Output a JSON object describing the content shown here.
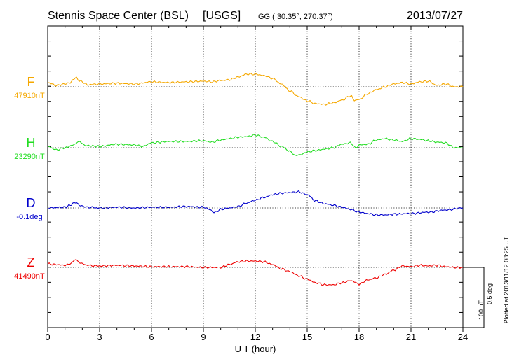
{
  "header": {
    "station": "Stennis Space Center (BSL)",
    "network": "[USGS]",
    "coords": "GG ( 30.35°, 270.37°)",
    "date": "2013/07/27"
  },
  "plotted_note": "Plotted at 2013/11/12 08:25 UT",
  "scale": {
    "nt": "100 nT",
    "deg": "0.5 deg"
  },
  "chart_data": {
    "type": "line",
    "xlabel": "U T (hour)",
    "xlim": [
      0,
      24
    ],
    "xticks": [
      "0",
      "3",
      "6",
      "9",
      "12",
      "15",
      "18",
      "21",
      "24"
    ],
    "channels": [
      {
        "name": "F",
        "baseline": "47910nT",
        "color": "#f5a800",
        "x": [
          0,
          0.5,
          1,
          1.3,
          1.6,
          1.9,
          2.3,
          3,
          4,
          5,
          6,
          7,
          8,
          9,
          9.5,
          10,
          10.5,
          11,
          11.5,
          12,
          12.5,
          13,
          13.5,
          14,
          14.5,
          15,
          15.5,
          16,
          16.5,
          17,
          17.5,
          17.8,
          18,
          18.5,
          19,
          19.5,
          20,
          20.5,
          21,
          21.5,
          22,
          22.5,
          23,
          23.5,
          24
        ],
        "y": [
          6,
          2,
          4,
          6,
          13,
          8,
          3,
          4,
          5,
          4,
          7,
          6,
          7,
          8,
          7,
          9,
          10,
          14,
          18,
          18,
          16,
          12,
          4,
          -6,
          -14,
          -20,
          -24,
          -25,
          -23,
          -19,
          -13,
          -20,
          -18,
          -10,
          -4,
          0,
          4,
          6,
          4,
          7,
          8,
          2,
          4,
          0,
          0
        ]
      },
      {
        "name": "H",
        "baseline": "23290nT",
        "color": "#22dd22",
        "x": [
          0,
          0.5,
          1,
          1.5,
          1.8,
          2.2,
          3,
          4,
          5,
          5.5,
          6,
          7,
          8,
          9,
          9.5,
          10,
          10.5,
          11,
          11.5,
          12,
          12.5,
          13,
          13.5,
          14,
          14.3,
          14.6,
          15,
          15.5,
          16,
          16.5,
          17,
          17.5,
          17.8,
          18,
          18.5,
          19,
          19.5,
          20,
          20.5,
          21,
          21.5,
          22,
          22.5,
          23,
          23.5,
          24
        ],
        "y": [
          2,
          -3,
          0,
          4,
          9,
          3,
          2,
          5,
          4,
          2,
          7,
          9,
          9,
          10,
          8,
          11,
          13,
          15,
          16,
          18,
          15,
          9,
          2,
          -5,
          -11,
          -10,
          -6,
          -4,
          -2,
          0,
          5,
          7,
          0,
          4,
          5,
          11,
          13,
          11,
          9,
          13,
          12,
          10,
          8,
          7,
          0,
          0
        ]
      },
      {
        "name": "D",
        "baseline": "-0.1deg",
        "color": "#0000cc",
        "x": [
          0,
          1,
          1.3,
          1.6,
          1.9,
          2.3,
          3,
          4,
          5,
          6,
          7,
          8,
          9,
          9.7,
          10,
          10.5,
          11,
          11.5,
          12,
          12.5,
          13,
          13.5,
          14,
          14.5,
          15,
          15.5,
          16,
          16.5,
          17,
          17.5,
          18,
          18.5,
          19,
          19.5,
          20,
          21,
          22,
          23,
          24
        ],
        "y": [
          0,
          1,
          4,
          8,
          3,
          1,
          0,
          1,
          0,
          1,
          1,
          2,
          1,
          -6,
          -2,
          0,
          2,
          7,
          11,
          15,
          19,
          21,
          22,
          23,
          19,
          10,
          6,
          4,
          1,
          -2,
          -6,
          -8,
          -10,
          -10,
          -9,
          -8,
          -6,
          -3,
          0
        ]
      },
      {
        "name": "Z",
        "baseline": "41490nT",
        "color": "#ee0000",
        "x": [
          0,
          0.5,
          1,
          1.3,
          1.6,
          1.9,
          2.3,
          3,
          4,
          5,
          6,
          7,
          8,
          9,
          10,
          10.5,
          11,
          11.5,
          12,
          12.5,
          13,
          13.5,
          14,
          14.5,
          15,
          15.5,
          16,
          16.5,
          17,
          17.5,
          17.8,
          18,
          18.5,
          19,
          19.5,
          20,
          20.5,
          21,
          21.5,
          22,
          22.5,
          23,
          23.5,
          24
        ],
        "y": [
          5,
          4,
          3,
          5,
          11,
          6,
          3,
          2,
          3,
          2,
          1,
          1,
          1,
          0,
          0,
          4,
          8,
          9,
          9,
          8,
          4,
          -2,
          -6,
          -12,
          -17,
          -22,
          -25,
          -25,
          -22,
          -19,
          -21,
          -24,
          -18,
          -15,
          -10,
          -4,
          2,
          1,
          3,
          2,
          3,
          1,
          0,
          0
        ]
      }
    ]
  }
}
